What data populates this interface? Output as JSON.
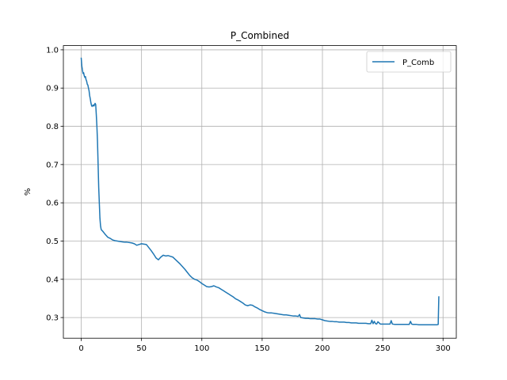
{
  "chart_data": {
    "type": "line",
    "title": "P_Combined",
    "xlabel": "",
    "ylabel": "%",
    "xlim": [
      -14.8,
      311
    ],
    "ylim": [
      0.246,
      1.011
    ],
    "xticks": [
      0,
      50,
      100,
      150,
      200,
      250,
      300
    ],
    "yticks": [
      0.3,
      0.4,
      0.5,
      0.6,
      0.7,
      0.8,
      0.9,
      1.0
    ],
    "ytick_labels": [
      "0.3",
      "0.4",
      "0.5",
      "0.6",
      "0.7",
      "0.8",
      "0.9",
      "1.0"
    ],
    "grid": true,
    "legend_position": "upper right",
    "series": [
      {
        "name": "P_Comb",
        "color": "#1f77b4",
        "x": [
          0,
          0.5,
          1,
          1.5,
          2,
          2.5,
          3,
          3.5,
          4,
          4.5,
          5,
          5.5,
          6,
          6.5,
          7,
          7.5,
          8,
          8.5,
          9,
          10,
          10.5,
          11,
          11.5,
          12,
          12.5,
          13,
          13.5,
          14,
          14.5,
          15,
          15.5,
          16,
          16.5,
          17,
          17.5,
          18,
          19,
          20,
          22,
          24,
          26,
          28,
          30,
          32,
          34,
          36,
          38,
          40,
          42,
          44,
          46,
          48,
          50,
          52,
          54,
          56,
          58,
          60,
          62,
          64,
          66,
          68,
          70,
          72,
          74,
          76,
          78,
          80,
          82,
          84,
          86,
          88,
          90,
          92,
          94,
          96,
          98,
          100,
          102,
          104,
          106,
          108,
          110,
          112,
          114,
          116,
          118,
          120,
          122,
          124,
          126,
          128,
          130,
          132,
          134,
          136,
          138,
          140,
          142,
          144,
          146,
          148,
          150,
          152,
          154,
          156,
          158,
          160,
          162,
          164,
          166,
          168,
          170,
          172,
          174,
          176,
          178,
          180,
          181,
          182,
          184,
          186,
          188,
          190,
          192,
          194,
          196,
          198,
          200,
          202,
          204,
          206,
          208,
          210,
          212,
          214,
          216,
          218,
          220,
          222,
          224,
          226,
          228,
          230,
          232,
          234,
          236,
          238,
          240,
          241,
          242,
          243,
          244,
          245,
          246,
          248,
          250,
          252,
          254,
          256,
          257,
          258,
          260,
          262,
          264,
          266,
          268,
          270,
          272,
          273,
          274,
          275,
          276,
          278,
          280,
          282,
          284,
          286,
          288,
          290,
          292,
          294,
          295,
          296,
          296.5
        ],
        "y": [
          0.978,
          0.958,
          0.947,
          0.938,
          0.94,
          0.932,
          0.928,
          0.93,
          0.922,
          0.918,
          0.91,
          0.908,
          0.9,
          0.893,
          0.88,
          0.872,
          0.862,
          0.855,
          0.852,
          0.856,
          0.853,
          0.856,
          0.86,
          0.857,
          0.83,
          0.8,
          0.76,
          0.7,
          0.64,
          0.6,
          0.56,
          0.54,
          0.531,
          0.528,
          0.527,
          0.525,
          0.521,
          0.517,
          0.51,
          0.507,
          0.503,
          0.501,
          0.5,
          0.499,
          0.498,
          0.497,
          0.497,
          0.496,
          0.495,
          0.493,
          0.489,
          0.491,
          0.493,
          0.492,
          0.491,
          0.483,
          0.475,
          0.466,
          0.456,
          0.451,
          0.458,
          0.463,
          0.461,
          0.462,
          0.46,
          0.458,
          0.452,
          0.446,
          0.44,
          0.433,
          0.426,
          0.418,
          0.41,
          0.404,
          0.4,
          0.398,
          0.394,
          0.389,
          0.385,
          0.381,
          0.38,
          0.381,
          0.383,
          0.38,
          0.378,
          0.374,
          0.37,
          0.366,
          0.362,
          0.358,
          0.354,
          0.349,
          0.346,
          0.342,
          0.338,
          0.333,
          0.331,
          0.333,
          0.332,
          0.328,
          0.325,
          0.321,
          0.318,
          0.315,
          0.313,
          0.312,
          0.312,
          0.311,
          0.31,
          0.309,
          0.308,
          0.307,
          0.307,
          0.306,
          0.305,
          0.304,
          0.304,
          0.303,
          0.308,
          0.3,
          0.299,
          0.298,
          0.298,
          0.297,
          0.297,
          0.297,
          0.296,
          0.296,
          0.294,
          0.292,
          0.291,
          0.29,
          0.29,
          0.289,
          0.289,
          0.288,
          0.288,
          0.288,
          0.287,
          0.287,
          0.286,
          0.286,
          0.286,
          0.285,
          0.285,
          0.285,
          0.285,
          0.284,
          0.284,
          0.293,
          0.284,
          0.29,
          0.284,
          0.283,
          0.289,
          0.283,
          0.283,
          0.283,
          0.283,
          0.283,
          0.292,
          0.283,
          0.282,
          0.282,
          0.282,
          0.282,
          0.282,
          0.282,
          0.282,
          0.29,
          0.283,
          0.282,
          0.282,
          0.282,
          0.281,
          0.281,
          0.281,
          0.281,
          0.281,
          0.281,
          0.281,
          0.281,
          0.281,
          0.282,
          0.354
        ]
      }
    ]
  }
}
